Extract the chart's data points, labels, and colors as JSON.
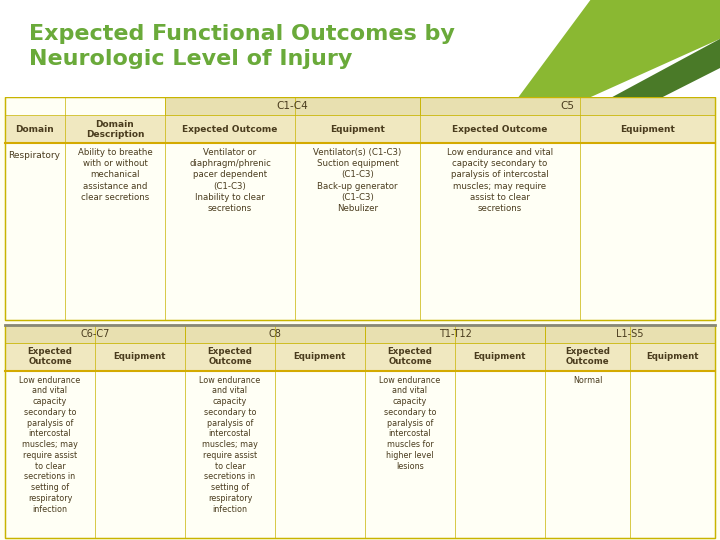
{
  "title": "Expected Functional Outcomes by\nNeurologic Level of Injury",
  "title_color": "#6aaa3a",
  "bg_color": "#fffff0",
  "header_bg": "#f5f0c8",
  "table_bg": "#fffff8",
  "border_color": "#c8b400",
  "text_color": "#4a3c1e",
  "header_text_color": "#4a3c1e",
  "slide_bg": "#ffffff",
  "green_stripe1": "#8ab832",
  "green_stripe2": "#4a7a28",
  "top_section": {
    "col_headers": [
      "C1-C4",
      "C5"
    ],
    "col_header_spans": [
      2,
      2
    ],
    "row_headers": [
      "Domain",
      "Domain\nDescription",
      "Expected Outcome",
      "Equipment",
      "Expected Outcome",
      "Equipment"
    ],
    "data_row_label": "Respiratory",
    "col1_desc": "Ability to breathe\nwith or without\nmechanical\nassistance and\nclear secretions",
    "col2_outcome": "Ventilator or\ndiaphragm/phrenic\npacer dependent\n(C1-C3)\nInability to clear\nsecretions",
    "col3_equipment": "Ventilator(s) (C1-C3)\nSuction equipment\n(C1-C3)\nBack-up generator\n(C1-C3)\nNebulizer",
    "col4_outcome": "Low endurance and vital\ncapacity secondary to\nparalysis of intercostal\nmuscles; may require\nassist to clear\nsecretions",
    "col5_equipment": ""
  },
  "bottom_section": {
    "col_headers": [
      "C6-C7",
      "C8",
      "T1-T12",
      "L1-S5"
    ],
    "col_header_spans": [
      2,
      2,
      2,
      2
    ],
    "sub_headers": [
      "Expected\nOutcome",
      "Equipment",
      "Expected\nOutcome",
      "Equipment",
      "Expected\nOutcome",
      "Equipment",
      "Expected\nOutcome",
      "Equipment"
    ],
    "c67_outcome": "Low endurance\nand vital\ncapacity\nsecondary to\nparalysis of\nintercostal\nmuscles; may\nrequire assist\nto clear\nsecretions in\nsetting of\nrespiratory\ninfection",
    "c67_equip": "",
    "c8_outcome": "Low endurance\nand vital\ncapacity\nsecondary to\nparalysis of\nintercostal\nmuscles; may\nrequire assist\nto clear\nsecretions in\nsetting of\nrespiratory\ninfection",
    "c8_equip": "",
    "t1_outcome": "Low endurance\nand vital\ncapacity\nsecondary to\nparalysis of\nintercostal\nmuscles for\nhigher level\nlesions",
    "t1_equip": "",
    "l1_outcome": "Normal",
    "l1_equip": ""
  }
}
